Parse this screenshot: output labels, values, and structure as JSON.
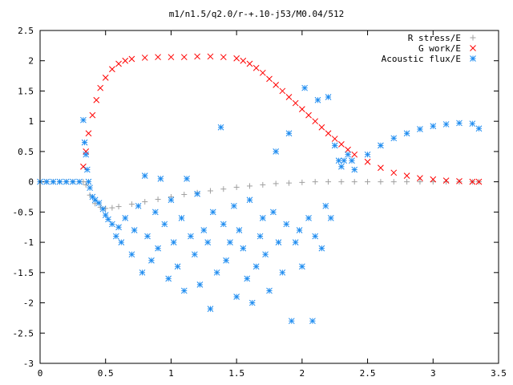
{
  "chart_data": {
    "type": "scatter",
    "title": "m1/n1.5/q2.0/r-+.10-j53/M0.04/512",
    "xlabel": "",
    "ylabel": "",
    "xlim": [
      0,
      3.5
    ],
    "ylim": [
      -3,
      2.5
    ],
    "x_ticks": [
      "0",
      "0.5",
      "1",
      "1.5",
      "2",
      "2.5",
      "3",
      "3.5"
    ],
    "y_ticks": [
      "-3",
      "-2.5",
      "-2",
      "-1.5",
      "-1",
      "-0.5",
      "0",
      "0.5",
      "1",
      "1.5",
      "2",
      "2.5"
    ],
    "grid": false,
    "legend_position": "top-right",
    "series": [
      {
        "name": "R stress/E",
        "marker": "plus",
        "color": "#a0a0a0",
        "x": [
          0,
          0.05,
          0.1,
          0.15,
          0.2,
          0.25,
          0.3,
          0.33,
          0.35,
          0.38,
          0.42,
          0.46,
          0.5,
          0.55,
          0.6,
          0.7,
          0.8,
          0.9,
          1.0,
          1.1,
          1.2,
          1.3,
          1.4,
          1.5,
          1.6,
          1.7,
          1.8,
          1.9,
          2.0,
          2.1,
          2.2,
          2.3,
          2.4,
          2.5,
          2.6,
          2.7,
          2.8,
          2.9,
          3.0,
          3.1,
          3.2,
          3.3,
          3.35
        ],
        "y": [
          0,
          0,
          0,
          0,
          0,
          0,
          0,
          0,
          -0.05,
          -0.22,
          -0.36,
          -0.42,
          -0.44,
          -0.43,
          -0.41,
          -0.37,
          -0.33,
          -0.29,
          -0.25,
          -0.21,
          -0.18,
          -0.15,
          -0.12,
          -0.09,
          -0.07,
          -0.05,
          -0.03,
          -0.02,
          -0.01,
          0.0,
          0.0,
          0.0,
          0.0,
          0.0,
          0.0,
          0.0,
          0.0,
          0.0,
          0.0,
          0.0,
          0.0,
          0.0,
          0.0
        ]
      },
      {
        "name": "G work/E",
        "marker": "cross",
        "color": "#ff0000",
        "x": [
          0.33,
          0.35,
          0.37,
          0.4,
          0.43,
          0.46,
          0.5,
          0.55,
          0.6,
          0.65,
          0.7,
          0.8,
          0.9,
          1.0,
          1.1,
          1.2,
          1.3,
          1.4,
          1.5,
          1.55,
          1.6,
          1.65,
          1.7,
          1.75,
          1.8,
          1.85,
          1.9,
          1.95,
          2.0,
          2.05,
          2.1,
          2.15,
          2.2,
          2.25,
          2.3,
          2.35,
          2.4,
          2.5,
          2.6,
          2.7,
          2.8,
          2.9,
          3.0,
          3.1,
          3.2,
          3.3,
          3.35
        ],
        "y": [
          0.25,
          0.5,
          0.8,
          1.1,
          1.35,
          1.55,
          1.72,
          1.86,
          1.95,
          2.0,
          2.03,
          2.05,
          2.06,
          2.06,
          2.06,
          2.07,
          2.07,
          2.06,
          2.04,
          2.0,
          1.95,
          1.88,
          1.8,
          1.7,
          1.6,
          1.5,
          1.4,
          1.3,
          1.2,
          1.1,
          1.0,
          0.9,
          0.8,
          0.71,
          0.62,
          0.53,
          0.45,
          0.33,
          0.23,
          0.15,
          0.1,
          0.06,
          0.04,
          0.02,
          0.01,
          0.0,
          0.0
        ]
      },
      {
        "name": "Acoustic flux/E",
        "marker": "star",
        "color": "#1e8cf0",
        "x": [
          0,
          0.05,
          0.1,
          0.15,
          0.2,
          0.25,
          0.3,
          0.33,
          0.34,
          0.35,
          0.36,
          0.37,
          0.38,
          0.4,
          0.42,
          0.45,
          0.48,
          0.5,
          0.52,
          0.55,
          0.58,
          0.6,
          0.62,
          0.65,
          0.7,
          0.72,
          0.75,
          0.78,
          0.8,
          0.82,
          0.85,
          0.88,
          0.9,
          0.92,
          0.95,
          0.98,
          1.0,
          1.02,
          1.05,
          1.08,
          1.1,
          1.12,
          1.15,
          1.18,
          1.2,
          1.22,
          1.25,
          1.28,
          1.3,
          1.32,
          1.35,
          1.38,
          1.4,
          1.42,
          1.45,
          1.48,
          1.5,
          1.52,
          1.55,
          1.58,
          1.6,
          1.62,
          1.65,
          1.68,
          1.7,
          1.72,
          1.75,
          1.78,
          1.8,
          1.82,
          1.85,
          1.88,
          1.9,
          1.92,
          1.95,
          1.98,
          2.0,
          2.02,
          2.05,
          2.08,
          2.1,
          2.12,
          2.15,
          2.18,
          2.2,
          2.22,
          2.25,
          2.28,
          2.3,
          2.32,
          2.35,
          2.38,
          2.4,
          2.5,
          2.6,
          2.7,
          2.8,
          2.9,
          3.0,
          3.1,
          3.2,
          3.3,
          3.35
        ],
        "y": [
          0,
          0,
          0,
          0,
          0,
          0,
          0,
          1.02,
          0.65,
          0.45,
          0.2,
          0.0,
          -0.1,
          -0.25,
          -0.3,
          -0.35,
          -0.45,
          -0.55,
          -0.62,
          -0.7,
          -0.9,
          -0.75,
          -1.0,
          -0.6,
          -1.2,
          -0.8,
          -0.4,
          -1.5,
          0.1,
          -0.9,
          -1.3,
          -0.5,
          -1.1,
          0.05,
          -0.7,
          -1.6,
          -0.3,
          -1.0,
          -1.4,
          -0.6,
          -1.8,
          0.05,
          -0.9,
          -1.2,
          -0.2,
          -1.7,
          -0.8,
          -1.0,
          -2.1,
          -0.5,
          -1.5,
          0.9,
          -0.7,
          -1.3,
          -1.0,
          -0.4,
          -1.9,
          -0.8,
          -1.1,
          -1.6,
          -0.3,
          -2.0,
          -1.4,
          -0.9,
          -0.6,
          -1.2,
          -1.8,
          -0.5,
          0.5,
          -1.0,
          -1.5,
          -0.7,
          0.8,
          -2.3,
          -1.0,
          -0.8,
          -1.4,
          1.55,
          -0.6,
          -2.3,
          -0.9,
          1.35,
          -1.1,
          -0.4,
          1.4,
          -0.6,
          0.6,
          0.35,
          0.25,
          0.35,
          0.45,
          0.35,
          0.2,
          0.45,
          0.6,
          0.72,
          0.8,
          0.87,
          0.92,
          0.95,
          0.97,
          0.96,
          0.88
        ]
      }
    ]
  }
}
